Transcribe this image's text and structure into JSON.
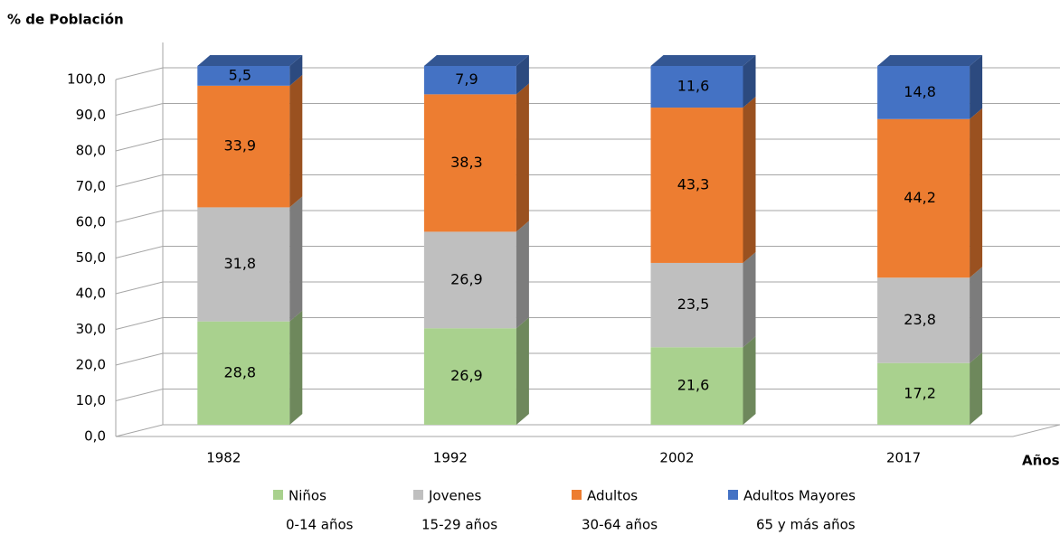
{
  "chart_data": {
    "type": "bar3d_stacked",
    "y_axis_label": "% de Población",
    "x_axis_label": "Años",
    "categories": [
      "1982",
      "1992",
      "2002",
      "2017"
    ],
    "series": [
      {
        "name": "Niños",
        "range": "0-14 años",
        "color": "#a9d18e",
        "values": [
          28.8,
          26.9,
          21.6,
          17.2
        ],
        "value_labels": [
          "28,8",
          "26,9",
          "21,6",
          "17,2"
        ]
      },
      {
        "name": "Jovenes",
        "range": "15-29 años",
        "color": "#bfbfbf",
        "values": [
          31.8,
          26.9,
          23.5,
          23.8
        ],
        "value_labels": [
          "31,8",
          "26,9",
          "23,5",
          "23,8"
        ]
      },
      {
        "name": "Adultos",
        "range": "30-64 años",
        "color": "#ed7d31",
        "values": [
          33.9,
          38.3,
          43.3,
          44.2
        ],
        "value_labels": [
          "33,9",
          "38,3",
          "43,3",
          "44,2"
        ]
      },
      {
        "name": "Adultos Mayores",
        "range": "65 y más años",
        "color": "#4472c4",
        "values": [
          5.5,
          7.9,
          11.6,
          14.8
        ],
        "value_labels": [
          "5,5",
          "7,9",
          "11,6",
          "14,8"
        ]
      }
    ],
    "ylim": [
      0,
      100
    ],
    "yticks": [
      {
        "value": 0,
        "label": "0,0"
      },
      {
        "value": 10,
        "label": "10,0"
      },
      {
        "value": 20,
        "label": "20,0"
      },
      {
        "value": 30,
        "label": "30,0"
      },
      {
        "value": 40,
        "label": "40,0"
      },
      {
        "value": 50,
        "label": "50,0"
      },
      {
        "value": 60,
        "label": "60,0"
      },
      {
        "value": 70,
        "label": "70,0"
      },
      {
        "value": 80,
        "label": "80,0"
      },
      {
        "value": 90,
        "label": "90,0"
      },
      {
        "value": 100,
        "label": "100,0"
      }
    ],
    "grid": true,
    "stacked": true
  }
}
